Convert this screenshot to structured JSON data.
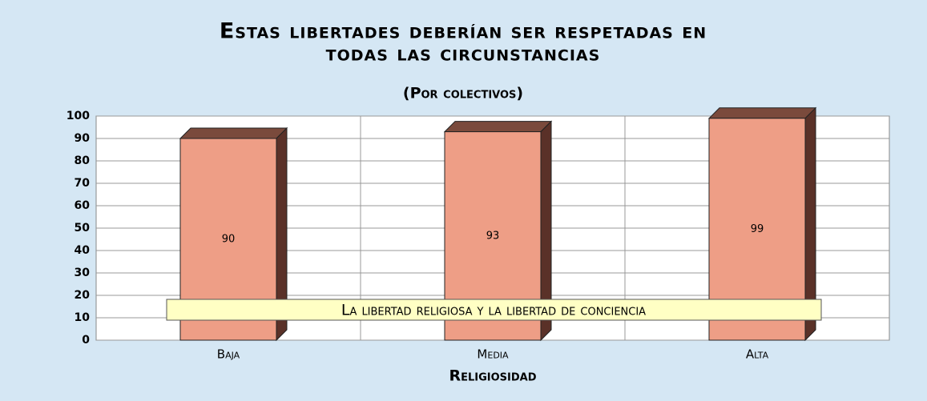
{
  "chart_data": {
    "type": "bar3d",
    "title": [
      "Estas libertades deberían ser respetadas en",
      "todas las circunstancias"
    ],
    "subtitle": "(Por colectivos)",
    "x_label": "Religiosidad",
    "categories": [
      "Baja",
      "Media",
      "Alta"
    ],
    "values": [
      90,
      93,
      99
    ],
    "color": "#ee9e86",
    "ylim": [
      0,
      100
    ],
    "yticks": [
      0,
      10,
      20,
      30,
      40,
      50,
      60,
      70,
      80,
      90,
      100
    ],
    "grid": true,
    "annotation": "La libertad religiosa y la libertad de conciencia"
  }
}
